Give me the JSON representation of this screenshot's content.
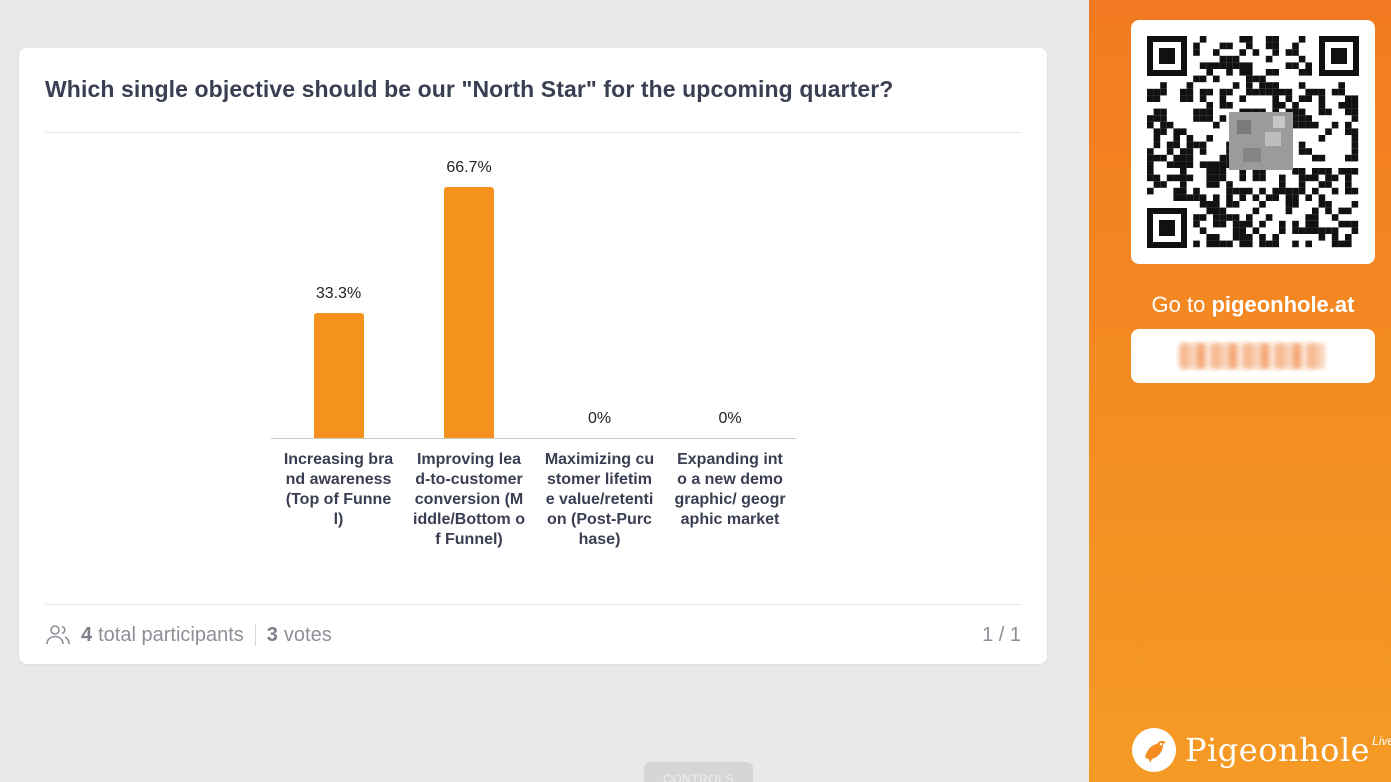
{
  "poll": {
    "question": "Which single objective should be our \"North Star\" for the upcoming quarter?",
    "participants_count": "4",
    "participants_label": "total participants",
    "votes_count": "3",
    "votes_label": "votes",
    "pagination": "1 / 1"
  },
  "chart_data": {
    "type": "bar",
    "categories": [
      "Increasing brand awareness (Top of Funnel)",
      "Improving lead-to-customer conversion (Middle/Bottom of Funnel)",
      "Maximizing customer lifetime value/retention (Post-Purchase)",
      "Expanding into a new demographic/ geographic market"
    ],
    "values": [
      33.3,
      66.7,
      0,
      0
    ],
    "value_labels": [
      "33.3%",
      "66.7%",
      "0%",
      "0%"
    ],
    "ylim": [
      0,
      66.7
    ],
    "bar_color": "#f5921e"
  },
  "controls": {
    "label": "CONTROLS"
  },
  "sidebar": {
    "goto_prefix": "Go to",
    "goto_url": "pigeonhole.at",
    "brand_name": "Pigeonhole",
    "brand_suffix": "Live",
    "accent_color": "#f48a22"
  },
  "icons": {
    "participants": "users-icon",
    "qr": "qr-code-icon",
    "logo": "pigeon-logo-icon"
  }
}
